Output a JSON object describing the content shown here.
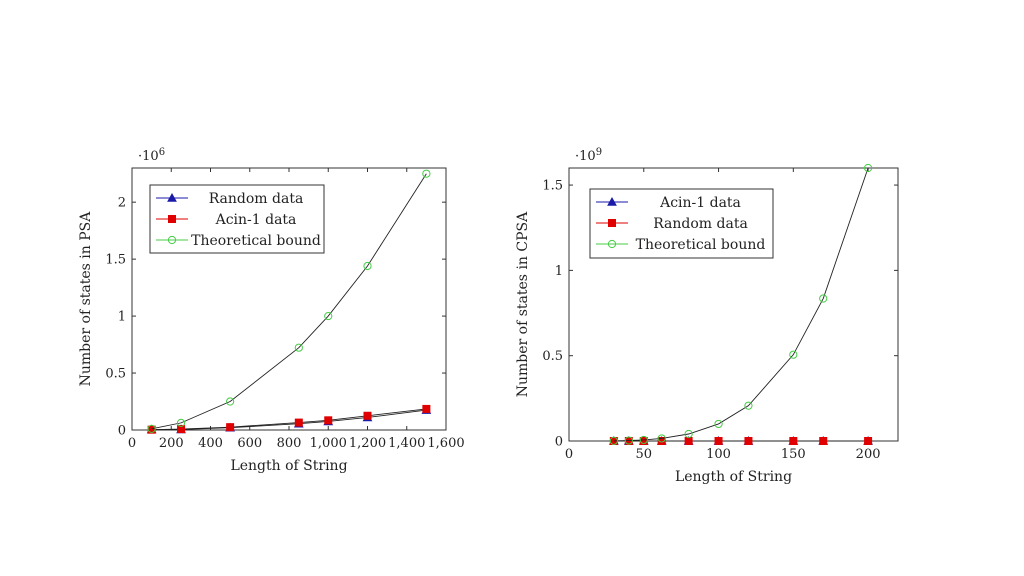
{
  "chart_data": [
    {
      "type": "line",
      "title": "",
      "xlabel": "Length of String",
      "ylabel": "Number of states in PSA",
      "y_multiplier_label": "·10",
      "y_multiplier_exp": "6",
      "xlim": [
        0,
        1600
      ],
      "ylim": [
        0,
        2.3
      ],
      "x_ticks": [
        0,
        200,
        400,
        600,
        800,
        1000,
        1200,
        1400,
        1600
      ],
      "x_tick_labels": [
        "0",
        "200",
        "400",
        "600",
        "800",
        "1,000",
        "1,200",
        "1,400",
        "1,600"
      ],
      "y_ticks": [
        0,
        0.5,
        1,
        1.5,
        2
      ],
      "y_tick_labels": [
        "0",
        "0.5",
        "1",
        "1.5",
        "2"
      ],
      "legend_position": "top-left",
      "grid": false,
      "series": [
        {
          "name": "Random data",
          "color": "#1a1aa8",
          "marker": "triangle",
          "x": [
            100,
            250,
            500,
            850,
            1000,
            1200,
            1500
          ],
          "y": [
            0.003,
            0.005,
            0.02,
            0.055,
            0.075,
            0.11,
            0.175
          ]
        },
        {
          "name": "Acin-1 data",
          "color": "#e00000",
          "marker": "square",
          "x": [
            100,
            250,
            500,
            850,
            1000,
            1200,
            1500
          ],
          "y": [
            0.003,
            0.008,
            0.025,
            0.065,
            0.085,
            0.125,
            0.185
          ]
        },
        {
          "name": "Theoretical bound",
          "color": "#44cc44",
          "marker": "circle",
          "x": [
            100,
            250,
            500,
            850,
            1000,
            1200,
            1500
          ],
          "y": [
            0.01,
            0.0625,
            0.25,
            0.7225,
            1.0,
            1.44,
            2.25
          ]
        }
      ]
    },
    {
      "type": "line",
      "title": "",
      "xlabel": "Length of String",
      "ylabel": "Number of states in CPSA",
      "y_multiplier_label": "·10",
      "y_multiplier_exp": "9",
      "xlim": [
        0,
        220
      ],
      "ylim": [
        0,
        1.6
      ],
      "x_ticks": [
        0,
        50,
        100,
        150,
        200
      ],
      "x_tick_labels": [
        "0",
        "50",
        "100",
        "150",
        "200"
      ],
      "y_ticks": [
        0,
        0.5,
        1,
        1.5
      ],
      "y_tick_labels": [
        "0",
        "0.5",
        "1",
        "1.5"
      ],
      "legend_position": "top-left",
      "grid": false,
      "series": [
        {
          "name": "Acin-1 data",
          "color": "#1a1aa8",
          "marker": "triangle",
          "x": [
            30,
            40,
            50,
            62,
            80,
            100,
            120,
            150,
            170,
            200
          ],
          "y": [
            0,
            0,
            0,
            0,
            0,
            0,
            0,
            0,
            0,
            0
          ]
        },
        {
          "name": "Random data",
          "color": "#e00000",
          "marker": "square",
          "x": [
            30,
            40,
            50,
            62,
            80,
            100,
            120,
            150,
            170,
            200
          ],
          "y": [
            0,
            0,
            0,
            0,
            0,
            0,
            0,
            0,
            0,
            0
          ]
        },
        {
          "name": "Theoretical bound",
          "color": "#44cc44",
          "marker": "circle",
          "x": [
            30,
            40,
            50,
            62,
            80,
            100,
            120,
            150,
            170,
            200
          ],
          "y": [
            0.0008,
            0.0026,
            0.0063,
            0.015,
            0.041,
            0.1,
            0.207,
            0.506,
            0.835,
            1.6
          ]
        }
      ]
    }
  ]
}
